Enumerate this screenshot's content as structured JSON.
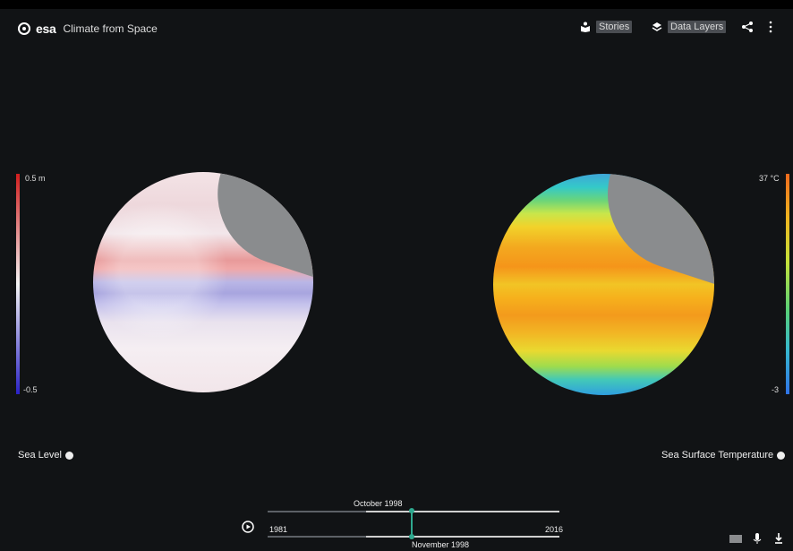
{
  "header": {
    "brand": "esa",
    "app_title": "Climate from Space",
    "nav": [
      {
        "label": "Stories",
        "icon": "stories-icon"
      },
      {
        "label": "Data Layers",
        "icon": "layers-icon"
      }
    ],
    "share_icon": "share-icon",
    "menu_icon": "more-vertical-icon"
  },
  "left_layer": {
    "name": "Sea Level",
    "scale_max": "0.5 m",
    "scale_min": "-0.5",
    "colors": [
      "#d21e1e",
      "#f5f5f5",
      "#2a22c6"
    ]
  },
  "right_layer": {
    "name": "Sea Surface Temperature",
    "scale_max": "37 °C",
    "scale_min": "-3",
    "colors": [
      "#f06a1d",
      "#f0b51f",
      "#c5e23a",
      "#58d078",
      "#36b8cf",
      "#2f73e8"
    ]
  },
  "timeline": {
    "start_year": "1981",
    "end_year": "2016",
    "current_top": "October 1998",
    "current_bottom": "November 1998",
    "play_icon": "play-icon"
  },
  "footer_icons": [
    "keyboard-icon",
    "mic-icon",
    "download-icon"
  ]
}
